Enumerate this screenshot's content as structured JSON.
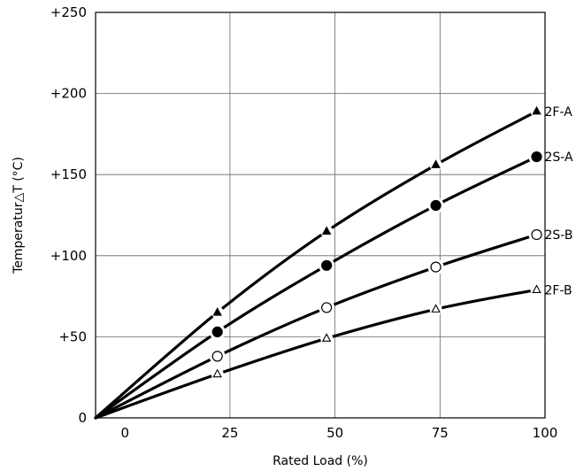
{
  "chart_data": {
    "type": "line",
    "title": "",
    "xlabel": "Rated Load (%)",
    "ylabel": "Temperatur△T (°C)",
    "xlim": [
      -7,
      100
    ],
    "ylim": [
      0,
      250
    ],
    "x_ticks": [
      "0",
      "25",
      "50",
      "75",
      "100"
    ],
    "y_ticks": [
      "0",
      "+50",
      "+100",
      "+150",
      "+200",
      "+250"
    ],
    "grid": true,
    "legend": "labels at line ends",
    "series": [
      {
        "name": "2F-A",
        "marker": "filled-triangle",
        "x": [
          -7,
          22,
          48,
          74,
          98
        ],
        "y": [
          0,
          65,
          115,
          156,
          189
        ]
      },
      {
        "name": "2S-A",
        "marker": "filled-circle",
        "x": [
          -7,
          22,
          48,
          74,
          98
        ],
        "y": [
          0,
          53,
          94,
          131,
          161
        ]
      },
      {
        "name": "2S-B",
        "marker": "open-circle",
        "x": [
          -7,
          22,
          48,
          74,
          98
        ],
        "y": [
          0,
          38,
          68,
          93,
          113
        ]
      },
      {
        "name": "2F-B",
        "marker": "open-triangle",
        "x": [
          -7,
          22,
          48,
          74,
          98
        ],
        "y": [
          0,
          27,
          49,
          67,
          79
        ]
      }
    ]
  }
}
